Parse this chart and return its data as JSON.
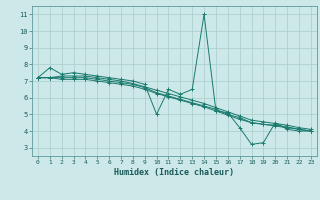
{
  "title": "",
  "xlabel": "Humidex (Indice chaleur)",
  "bg_color": "#cce8e8",
  "line_color": "#1a7a6e",
  "grid_color": "#aacccc",
  "xlim": [
    -0.5,
    23.5
  ],
  "ylim": [
    2.5,
    11.5
  ],
  "xticks": [
    0,
    1,
    2,
    3,
    4,
    5,
    6,
    7,
    8,
    9,
    10,
    11,
    12,
    13,
    14,
    15,
    16,
    17,
    18,
    19,
    20,
    21,
    22,
    23
  ],
  "yticks": [
    3,
    4,
    5,
    6,
    7,
    8,
    9,
    10,
    11
  ],
  "series": [
    [
      7.2,
      7.8,
      7.4,
      7.5,
      7.4,
      7.3,
      7.2,
      7.1,
      7.0,
      6.8,
      5.0,
      6.5,
      6.2,
      6.5,
      11.0,
      5.2,
      5.1,
      4.2,
      3.2,
      3.3,
      4.5,
      4.1,
      4.0,
      4.0
    ],
    [
      7.2,
      7.2,
      7.2,
      7.2,
      7.2,
      7.1,
      7.0,
      6.9,
      6.8,
      6.6,
      6.3,
      6.1,
      5.9,
      5.7,
      5.5,
      5.3,
      5.0,
      4.8,
      4.5,
      4.4,
      4.3,
      4.2,
      4.1,
      4.0
    ],
    [
      7.2,
      7.2,
      7.3,
      7.3,
      7.3,
      7.2,
      7.1,
      7.0,
      6.85,
      6.65,
      6.45,
      6.25,
      6.05,
      5.85,
      5.65,
      5.4,
      5.15,
      4.9,
      4.65,
      4.55,
      4.45,
      4.35,
      4.2,
      4.1
    ],
    [
      7.2,
      7.2,
      7.1,
      7.1,
      7.1,
      7.0,
      6.9,
      6.8,
      6.7,
      6.5,
      6.25,
      6.05,
      5.85,
      5.65,
      5.45,
      5.2,
      4.95,
      4.7,
      4.5,
      4.4,
      4.35,
      4.25,
      4.1,
      4.0
    ]
  ],
  "x_values": [
    0,
    1,
    2,
    3,
    4,
    5,
    6,
    7,
    8,
    9,
    10,
    11,
    12,
    13,
    14,
    15,
    16,
    17,
    18,
    19,
    20,
    21,
    22,
    23
  ]
}
